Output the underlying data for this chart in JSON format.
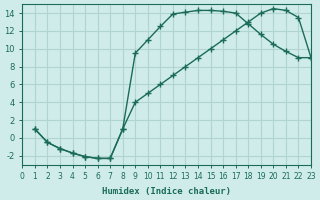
{
  "xlabel": "Humidex (Indice chaleur)",
  "ylabel": "",
  "background_color": "#d0ecea",
  "grid_color": "#b0d4d0",
  "line_color": "#1a6b5a",
  "xlim": [
    0,
    23
  ],
  "ylim": [
    -3,
    15
  ],
  "xticks": [
    0,
    1,
    2,
    3,
    4,
    5,
    6,
    7,
    8,
    9,
    10,
    11,
    12,
    13,
    14,
    15,
    16,
    17,
    18,
    19,
    20,
    21,
    22,
    23
  ],
  "yticks": [
    -2,
    0,
    2,
    4,
    6,
    8,
    10,
    12,
    14
  ],
  "curve1_x": [
    1,
    2,
    3,
    4,
    5,
    6,
    7,
    8,
    9,
    10,
    11,
    12,
    13,
    14,
    15,
    16,
    17,
    18,
    19,
    20,
    21,
    22,
    23
  ],
  "curve1_y": [
    1,
    -0.5,
    -1.2,
    -1.7,
    -2.1,
    -2.3,
    -2.3,
    1.0,
    9.5,
    11.0,
    12.5,
    13.9,
    14.1,
    14.3,
    14.3,
    14.2,
    14.0,
    12.8,
    11.6,
    10.5,
    9.7,
    9.0,
    9.0
  ],
  "curve2_x": [
    1,
    2,
    3,
    4,
    5,
    6,
    7,
    8,
    9,
    10,
    11,
    12,
    13,
    14,
    15,
    16,
    17,
    18,
    19,
    20,
    21,
    22,
    23
  ],
  "curve2_y": [
    1,
    -0.5,
    -1.2,
    -1.7,
    -2.1,
    -2.3,
    -2.3,
    1.0,
    4.0,
    5.0,
    6.0,
    7.0,
    8.0,
    9.0,
    10.0,
    11.0,
    12.0,
    13.0,
    14.0,
    14.5,
    14.3,
    13.5,
    9.0
  ]
}
